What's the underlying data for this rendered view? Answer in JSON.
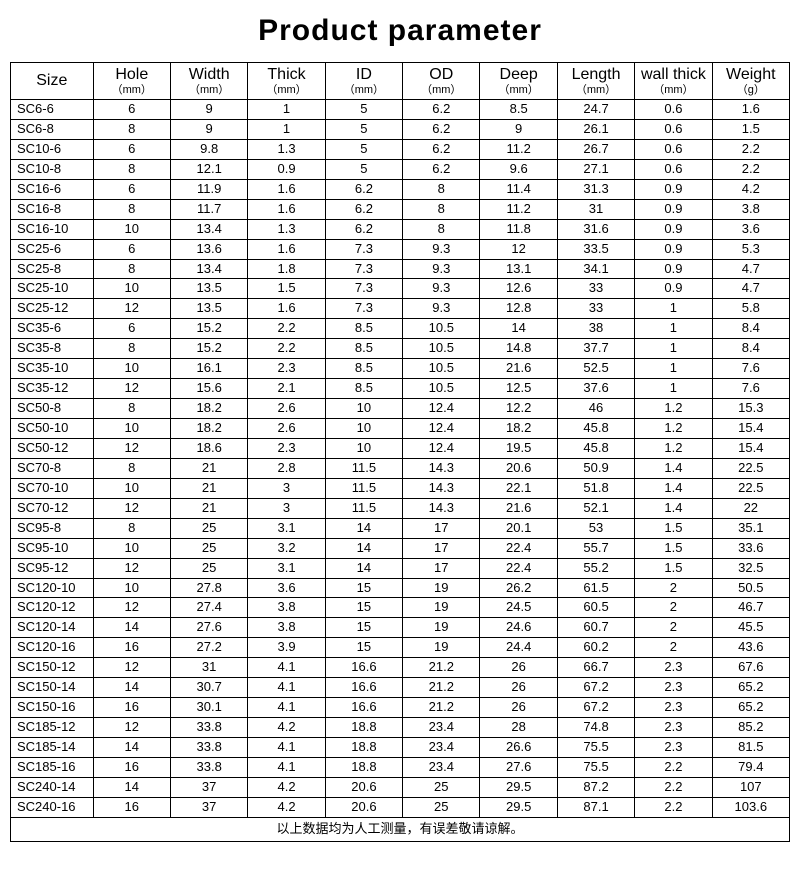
{
  "title": "Product  parameter",
  "footnote": "以上数据均为人工测量，有误差敬请谅解。",
  "table": {
    "columns": [
      {
        "name": "Size",
        "unit": ""
      },
      {
        "name": "Hole",
        "unit": "（mm）"
      },
      {
        "name": "Width",
        "unit": "（mm）"
      },
      {
        "name": "Thick",
        "unit": "（mm）"
      },
      {
        "name": "ID",
        "unit": "（mm）"
      },
      {
        "name": "OD",
        "unit": "（mm）"
      },
      {
        "name": "Deep",
        "unit": "（mm）"
      },
      {
        "name": "Length",
        "unit": "（mm）"
      },
      {
        "name": "wall thick",
        "unit": "（mm）"
      },
      {
        "name": "Weight",
        "unit": "（g）"
      }
    ],
    "rows": [
      [
        "SC6-6",
        "6",
        "9",
        "1",
        "5",
        "6.2",
        "8.5",
        "24.7",
        "0.6",
        "1.6"
      ],
      [
        "SC6-8",
        "8",
        "9",
        "1",
        "5",
        "6.2",
        "9",
        "26.1",
        "0.6",
        "1.5"
      ],
      [
        "SC10-6",
        "6",
        "9.8",
        "1.3",
        "5",
        "6.2",
        "11.2",
        "26.7",
        "0.6",
        "2.2"
      ],
      [
        "SC10-8",
        "8",
        "12.1",
        "0.9",
        "5",
        "6.2",
        "9.6",
        "27.1",
        "0.6",
        "2.2"
      ],
      [
        "SC16-6",
        "6",
        "11.9",
        "1.6",
        "6.2",
        "8",
        "11.4",
        "31.3",
        "0.9",
        "4.2"
      ],
      [
        "SC16-8",
        "8",
        "11.7",
        "1.6",
        "6.2",
        "8",
        "11.2",
        "31",
        "0.9",
        "3.8"
      ],
      [
        "SC16-10",
        "10",
        "13.4",
        "1.3",
        "6.2",
        "8",
        "11.8",
        "31.6",
        "0.9",
        "3.6"
      ],
      [
        "SC25-6",
        "6",
        "13.6",
        "1.6",
        "7.3",
        "9.3",
        "12",
        "33.5",
        "0.9",
        "5.3"
      ],
      [
        "SC25-8",
        "8",
        "13.4",
        "1.8",
        "7.3",
        "9.3",
        "13.1",
        "34.1",
        "0.9",
        "4.7"
      ],
      [
        "SC25-10",
        "10",
        "13.5",
        "1.5",
        "7.3",
        "9.3",
        "12.6",
        "33",
        "0.9",
        "4.7"
      ],
      [
        "SC25-12",
        "12",
        "13.5",
        "1.6",
        "7.3",
        "9.3",
        "12.8",
        "33",
        "1",
        "5.8"
      ],
      [
        "SC35-6",
        "6",
        "15.2",
        "2.2",
        "8.5",
        "10.5",
        "14",
        "38",
        "1",
        "8.4"
      ],
      [
        "SC35-8",
        "8",
        "15.2",
        "2.2",
        "8.5",
        "10.5",
        "14.8",
        "37.7",
        "1",
        "8.4"
      ],
      [
        "SC35-10",
        "10",
        "16.1",
        "2.3",
        "8.5",
        "10.5",
        "21.6",
        "52.5",
        "1",
        "7.6"
      ],
      [
        "SC35-12",
        "12",
        "15.6",
        "2.1",
        "8.5",
        "10.5",
        "12.5",
        "37.6",
        "1",
        "7.6"
      ],
      [
        "SC50-8",
        "8",
        "18.2",
        "2.6",
        "10",
        "12.4",
        "12.2",
        "46",
        "1.2",
        "15.3"
      ],
      [
        "SC50-10",
        "10",
        "18.2",
        "2.6",
        "10",
        "12.4",
        "18.2",
        "45.8",
        "1.2",
        "15.4"
      ],
      [
        "SC50-12",
        "12",
        "18.6",
        "2.3",
        "10",
        "12.4",
        "19.5",
        "45.8",
        "1.2",
        "15.4"
      ],
      [
        "SC70-8",
        "8",
        "21",
        "2.8",
        "11.5",
        "14.3",
        "20.6",
        "50.9",
        "1.4",
        "22.5"
      ],
      [
        "SC70-10",
        "10",
        "21",
        "3",
        "11.5",
        "14.3",
        "22.1",
        "51.8",
        "1.4",
        "22.5"
      ],
      [
        "SC70-12",
        "12",
        "21",
        "3",
        "11.5",
        "14.3",
        "21.6",
        "52.1",
        "1.4",
        "22"
      ],
      [
        "SC95-8",
        "8",
        "25",
        "3.1",
        "14",
        "17",
        "20.1",
        "53",
        "1.5",
        "35.1"
      ],
      [
        "SC95-10",
        "10",
        "25",
        "3.2",
        "14",
        "17",
        "22.4",
        "55.7",
        "1.5",
        "33.6"
      ],
      [
        "SC95-12",
        "12",
        "25",
        "3.1",
        "14",
        "17",
        "22.4",
        "55.2",
        "1.5",
        "32.5"
      ],
      [
        "SC120-10",
        "10",
        "27.8",
        "3.6",
        "15",
        "19",
        "26.2",
        "61.5",
        "2",
        "50.5"
      ],
      [
        "SC120-12",
        "12",
        "27.4",
        "3.8",
        "15",
        "19",
        "24.5",
        "60.5",
        "2",
        "46.7"
      ],
      [
        "SC120-14",
        "14",
        "27.6",
        "3.8",
        "15",
        "19",
        "24.6",
        "60.7",
        "2",
        "45.5"
      ],
      [
        "SC120-16",
        "16",
        "27.2",
        "3.9",
        "15",
        "19",
        "24.4",
        "60.2",
        "2",
        "43.6"
      ],
      [
        "SC150-12",
        "12",
        "31",
        "4.1",
        "16.6",
        "21.2",
        "26",
        "66.7",
        "2.3",
        "67.6"
      ],
      [
        "SC150-14",
        "14",
        "30.7",
        "4.1",
        "16.6",
        "21.2",
        "26",
        "67.2",
        "2.3",
        "65.2"
      ],
      [
        "SC150-16",
        "16",
        "30.1",
        "4.1",
        "16.6",
        "21.2",
        "26",
        "67.2",
        "2.3",
        "65.2"
      ],
      [
        "SC185-12",
        "12",
        "33.8",
        "4.2",
        "18.8",
        "23.4",
        "28",
        "74.8",
        "2.3",
        "85.2"
      ],
      [
        "SC185-14",
        "14",
        "33.8",
        "4.1",
        "18.8",
        "23.4",
        "26.6",
        "75.5",
        "2.3",
        "81.5"
      ],
      [
        "SC185-16",
        "16",
        "33.8",
        "4.1",
        "18.8",
        "23.4",
        "27.6",
        "75.5",
        "2.2",
        "79.4"
      ],
      [
        "SC240-14",
        "14",
        "37",
        "4.2",
        "20.6",
        "25",
        "29.5",
        "87.2",
        "2.2",
        "107"
      ],
      [
        "SC240-16",
        "16",
        "37",
        "4.2",
        "20.6",
        "25",
        "29.5",
        "87.1",
        "2.2",
        "103.6"
      ]
    ]
  },
  "style": {
    "background_color": "#ffffff",
    "border_color": "#000000",
    "title_fontsize": 30,
    "header_fontsize": 16,
    "unit_fontsize": 11,
    "cell_fontsize": 13,
    "font_family": "Arial"
  }
}
